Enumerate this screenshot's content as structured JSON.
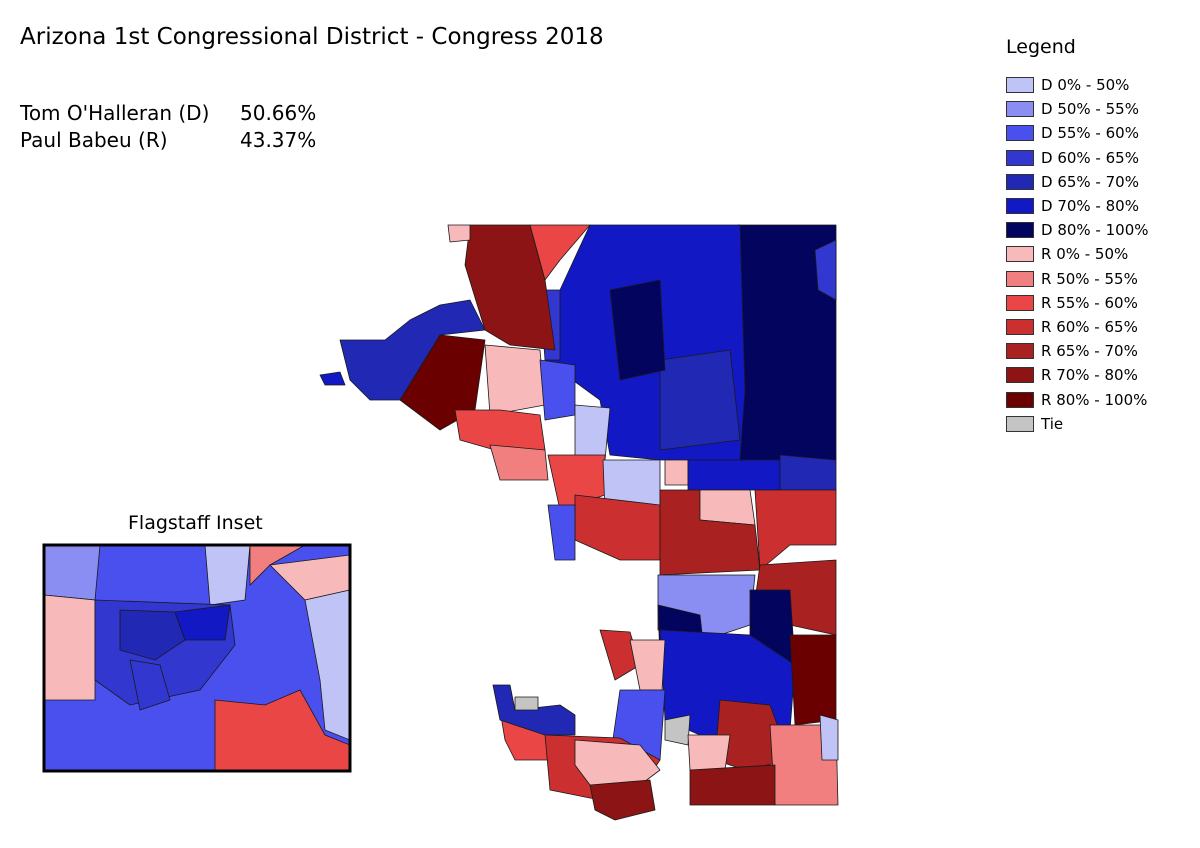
{
  "title": "Arizona 1st Congressional District - Congress 2018",
  "results": [
    {
      "candidate": "Tom O'Halleran (D)",
      "share": "50.66%"
    },
    {
      "candidate": "Paul Babeu (R)",
      "share": "43.37%"
    }
  ],
  "legend": {
    "title": "Legend",
    "items": [
      {
        "label": "D 0% - 50%",
        "color": "#c0c3f5"
      },
      {
        "label": "D 50% - 55%",
        "color": "#8a8ef2"
      },
      {
        "label": "D 55% - 60%",
        "color": "#4a50ee"
      },
      {
        "label": "D 60% - 65%",
        "color": "#3237d0"
      },
      {
        "label": "D 65% - 70%",
        "color": "#2128b4"
      },
      {
        "label": "D 70% - 80%",
        "color": "#1218c4"
      },
      {
        "label": "D 80% - 100%",
        "color": "#02045e"
      },
      {
        "label": "R 0% - 50%",
        "color": "#f8b9bb"
      },
      {
        "label": "R 50% - 55%",
        "color": "#f27f7f"
      },
      {
        "label": "R 55% - 60%",
        "color": "#ea4646"
      },
      {
        "label": "R 60% - 65%",
        "color": "#cc2f2f"
      },
      {
        "label": "R 65% - 70%",
        "color": "#a92121"
      },
      {
        "label": "R 70% - 80%",
        "color": "#8c1414"
      },
      {
        "label": "R 80% - 100%",
        "color": "#6b0000"
      },
      {
        "label": "Tie",
        "color": "#c4c4c4"
      }
    ]
  },
  "inset": {
    "title": "Flagstaff Inset"
  }
}
